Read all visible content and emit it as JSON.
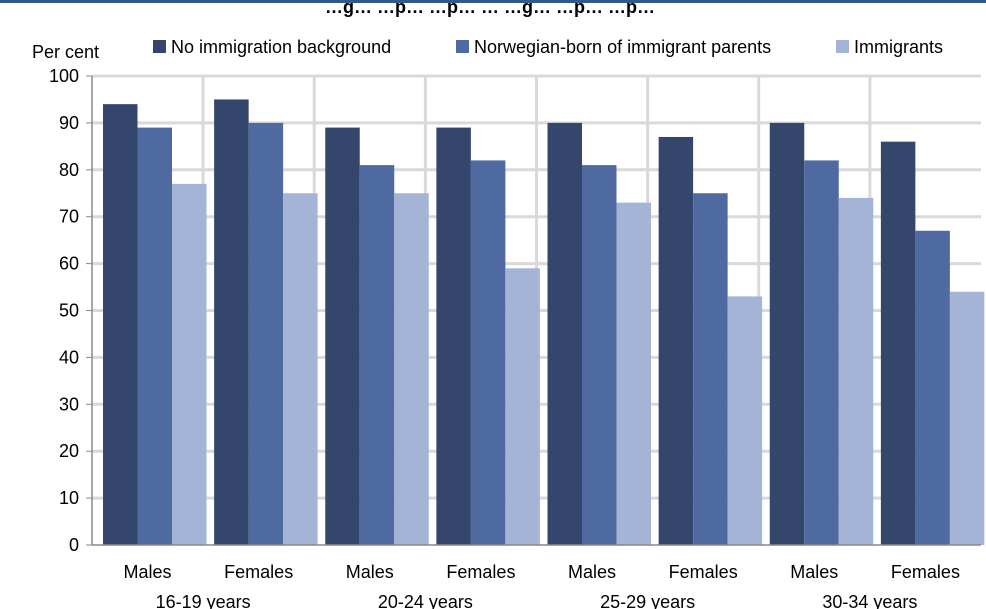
{
  "chart_data": {
    "type": "bar",
    "title": "…g… …p… …p… … …g… …p… …p…",
    "ylabel": "Per cent",
    "ylim": [
      0,
      100
    ],
    "ytick_step": 10,
    "grid": true,
    "legend_position": "top",
    "categories": [
      "Males",
      "Females",
      "Males",
      "Females",
      "Males",
      "Females",
      "Males",
      "Females"
    ],
    "groups": [
      "16-19 years",
      "20-24 years",
      "25-29 years",
      "30-34 years"
    ],
    "series": [
      {
        "name": "No immigration background",
        "color": "#34466b",
        "values": [
          94,
          95,
          89,
          89,
          90,
          87,
          90,
          86
        ]
      },
      {
        "name": "Norwegian-born of immigrant parents",
        "color": "#4f6aa1",
        "values": [
          89,
          90,
          81,
          82,
          81,
          75,
          82,
          67
        ]
      },
      {
        "name": "Immigrants",
        "color": "#a3b4d6",
        "values": [
          77,
          75,
          75,
          59,
          73,
          53,
          74,
          54
        ]
      }
    ]
  }
}
